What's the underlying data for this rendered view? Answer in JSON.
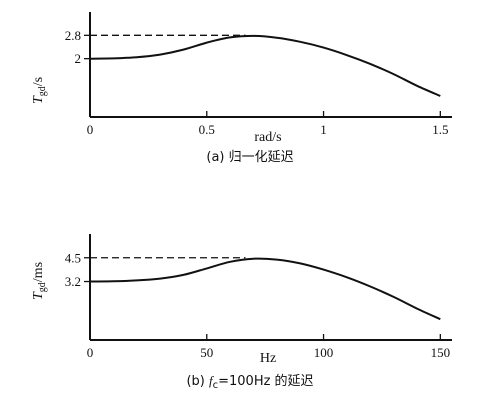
{
  "chart_data": [
    {
      "type": "line",
      "xlabel": "rad/s",
      "ylabel": "T",
      "ylabel_sub": "gd",
      "ylabel_unit": "/s",
      "caption": "(a) 归一化延迟",
      "xlim": [
        0,
        1.55
      ],
      "ylim": [
        0,
        3.6
      ],
      "x_ticks": [
        "0",
        "0.5",
        "1",
        "1.5"
      ],
      "x_tick_values": [
        0,
        0.5,
        1,
        1.5
      ],
      "y_ticks": [
        "2",
        "2.8"
      ],
      "y_tick_values": [
        2.0,
        2.8
      ],
      "ref_line_y": 2.8,
      "series": [
        {
          "x": [
            0,
            0.1,
            0.2,
            0.3,
            0.4,
            0.5,
            0.6,
            0.7,
            0.8,
            0.9,
            1.0,
            1.1,
            1.2,
            1.3,
            1.4,
            1.5
          ],
          "y": [
            2.0,
            2.01,
            2.05,
            2.14,
            2.31,
            2.55,
            2.73,
            2.78,
            2.72,
            2.58,
            2.38,
            2.12,
            1.82,
            1.47,
            1.07,
            0.72
          ]
        }
      ]
    },
    {
      "type": "line",
      "xlabel": "Hz",
      "ylabel": "T",
      "ylabel_sub": "gd",
      "ylabel_unit": "/ms",
      "caption_prefix": "(b) ",
      "caption_f": "f",
      "caption_sub": "c",
      "caption_rest": "=100Hz 的延迟",
      "xlim": [
        0,
        155
      ],
      "ylim": [
        0,
        5.8
      ],
      "x_ticks": [
        "0",
        "50",
        "100",
        "150"
      ],
      "x_tick_values": [
        0,
        50,
        100,
        150
      ],
      "y_ticks": [
        "3.2",
        "4.5"
      ],
      "y_tick_values": [
        3.2,
        4.5
      ],
      "ref_line_y": 4.5,
      "series": [
        {
          "x": [
            0,
            10,
            20,
            30,
            40,
            50,
            60,
            70,
            80,
            90,
            100,
            110,
            120,
            130,
            140,
            150
          ],
          "y": [
            3.2,
            3.21,
            3.26,
            3.36,
            3.56,
            3.92,
            4.28,
            4.45,
            4.4,
            4.19,
            3.85,
            3.43,
            2.93,
            2.36,
            1.72,
            1.14
          ]
        }
      ]
    }
  ]
}
